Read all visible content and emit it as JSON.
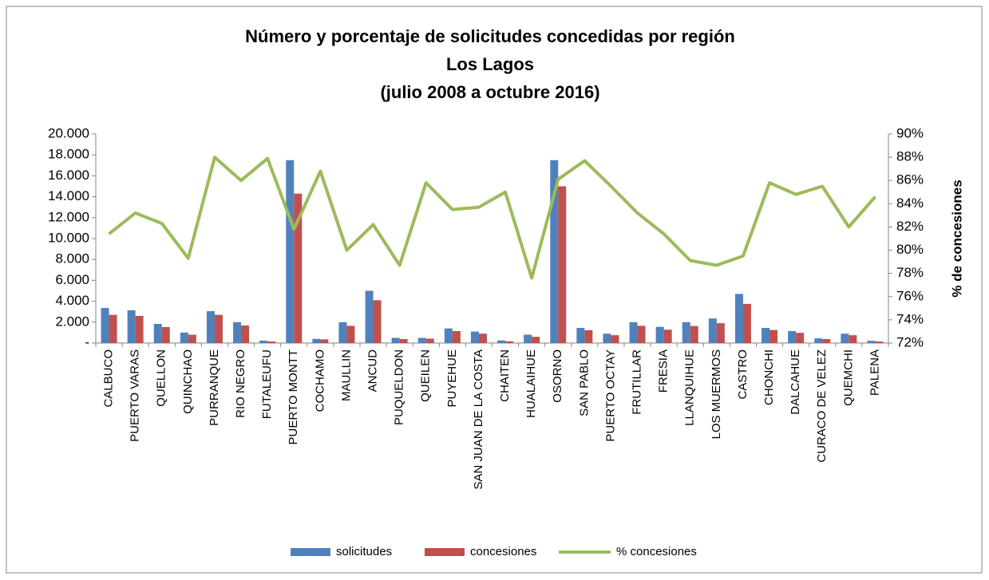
{
  "chart_data": {
    "type": "bar",
    "title": "Número y porcentaje de solicitudes concedidas por región",
    "subtitle": [
      "Los Lagos",
      "(julio 2008 a octubre 2016)"
    ],
    "y2label": "% de concesiones",
    "categories": [
      "CALBUCO",
      "PUERTO VARAS",
      "QUELLON",
      "QUINCHAO",
      "PURRANQUE",
      "RIO NEGRO",
      "FUTALEUFU",
      "PUERTO MONTT",
      "COCHAMO",
      "MAULLIN",
      "ANCUD",
      "PUQUELDON",
      "QUEILEN",
      "PUYEHUE",
      "SAN JUAN DE LA COSTA",
      "CHAITEN",
      "HUALAIHUE",
      "OSORNO",
      "SAN PABLO",
      "PUERTO OCTAY",
      "FRUTILLAR",
      "FRESIA",
      "LLANQUIHUE",
      "LOS MUERMOS",
      "CASTRO",
      "CHONCHI",
      "DALCAHUE",
      "CURACO DE VELEZ",
      "QUEMCHI",
      "PALENA"
    ],
    "series": [
      {
        "name": "solicitudes",
        "type": "bar",
        "color": "#4f81bd",
        "values": [
          3360,
          3130,
          1830,
          1000,
          3050,
          2000,
          230,
          17500,
          400,
          2000,
          5000,
          500,
          500,
          1400,
          1100,
          250,
          800,
          17500,
          1450,
          900,
          2000,
          1550,
          2000,
          2350,
          4700,
          1450,
          1150,
          450,
          900,
          220
        ]
      },
      {
        "name": "concesiones",
        "type": "bar",
        "color": "#c0504d",
        "values": [
          2700,
          2600,
          1530,
          800,
          2700,
          1680,
          150,
          14300,
          350,
          1650,
          4100,
          380,
          420,
          1150,
          900,
          170,
          600,
          15000,
          1230,
          750,
          1650,
          1280,
          1630,
          1900,
          3750,
          1250,
          980,
          380,
          750,
          150
        ]
      },
      {
        "name": "% concesiones",
        "type": "line",
        "axis": "y2",
        "color": "#9bbb59",
        "values": [
          81.4,
          83.2,
          82.3,
          79.3,
          88.0,
          86.0,
          87.9,
          81.8,
          86.8,
          80.0,
          82.2,
          78.7,
          85.8,
          83.5,
          83.7,
          85.0,
          77.6,
          86.1,
          87.7,
          85.5,
          83.2,
          81.4,
          79.1,
          78.7,
          79.5,
          85.8,
          84.8,
          85.5,
          82.0,
          84.6
        ]
      }
    ],
    "ylim": [
      0,
      20000
    ],
    "yticks": [
      {
        "value": 0,
        "label": "-"
      },
      {
        "value": 2000,
        "label": "2.000"
      },
      {
        "value": 4000,
        "label": "4.000"
      },
      {
        "value": 6000,
        "label": "6.000"
      },
      {
        "value": 8000,
        "label": "8.000"
      },
      {
        "value": 10000,
        "label": "10.000"
      },
      {
        "value": 12000,
        "label": "12.000"
      },
      {
        "value": 14000,
        "label": "14.000"
      },
      {
        "value": 16000,
        "label": "16.000"
      },
      {
        "value": 18000,
        "label": "18.000"
      },
      {
        "value": 20000,
        "label": "20.000"
      }
    ],
    "y2lim": [
      72,
      90
    ],
    "y2ticks": [
      {
        "value": 72,
        "label": "72%"
      },
      {
        "value": 74,
        "label": "74%"
      },
      {
        "value": 76,
        "label": "76%"
      },
      {
        "value": 78,
        "label": "78%"
      },
      {
        "value": 80,
        "label": "80%"
      },
      {
        "value": 82,
        "label": "82%"
      },
      {
        "value": 84,
        "label": "84%"
      },
      {
        "value": 86,
        "label": "86%"
      },
      {
        "value": 88,
        "label": "88%"
      },
      {
        "value": 90,
        "label": "90%"
      }
    ],
    "grid": false,
    "legend": "bottom"
  }
}
